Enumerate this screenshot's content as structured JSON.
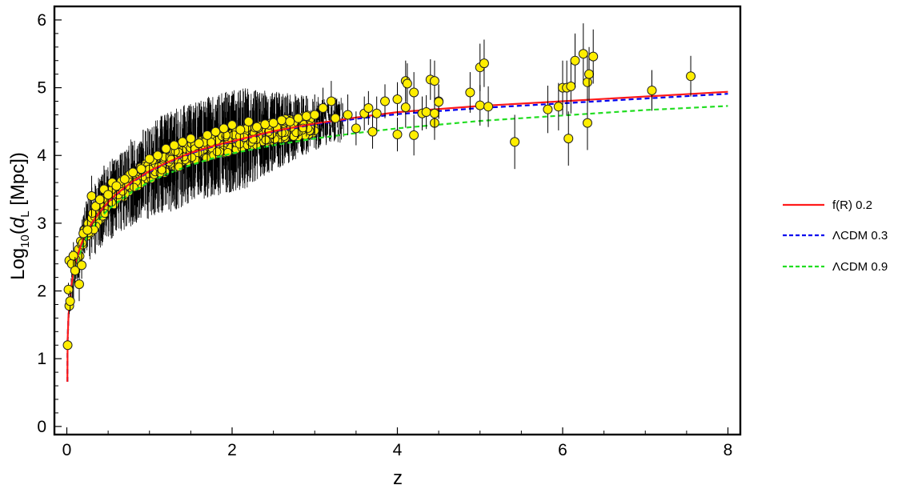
{
  "chart_data": {
    "type": "scatter",
    "xlabel": "z",
    "ylabel": {
      "pre": "Log",
      "sub1": "10",
      "mid": "(",
      "italic": "d",
      "sub2": "L",
      "post": " [Mpc])"
    },
    "xlim": [
      -0.15,
      8.15
    ],
    "ylim": [
      -0.12,
      6.2
    ],
    "xticks": [
      0,
      2,
      4,
      6,
      8
    ],
    "yticks": [
      0,
      1,
      2,
      3,
      4,
      5,
      6
    ],
    "grid": false,
    "legend_position": "right",
    "series": [
      {
        "name": "f(R) 0.2",
        "kind": "line",
        "style": "solid",
        "color": "#ff1a1a",
        "x": [
          0.0065,
          0.01,
          0.02,
          0.03,
          0.05,
          0.075,
          0.1,
          0.15,
          0.2,
          0.3,
          0.4,
          0.5,
          0.6,
          0.8,
          1.0,
          1.2,
          1.5,
          1.8,
          2.0,
          2.5,
          3.0,
          3.5,
          4.0,
          5.0,
          6.0,
          7.0,
          8.0
        ],
        "y": [
          0.66,
          1.28,
          1.63,
          1.8,
          2.04,
          2.23,
          2.37,
          2.6,
          2.77,
          3.0,
          3.17,
          3.31,
          3.43,
          3.62,
          3.77,
          3.89,
          4.04,
          4.15,
          4.21,
          4.36,
          4.47,
          4.56,
          4.64,
          4.73,
          4.8,
          4.87,
          4.94
        ]
      },
      {
        "name": "ΛCDM  0.3",
        "kind": "line",
        "style": "dashed",
        "color": "#0000ee",
        "x": [
          0.0065,
          0.01,
          0.02,
          0.03,
          0.05,
          0.075,
          0.1,
          0.15,
          0.2,
          0.3,
          0.4,
          0.5,
          0.6,
          0.8,
          1.0,
          1.2,
          1.5,
          1.8,
          2.0,
          2.5,
          3.0,
          3.5,
          4.0,
          5.0,
          6.0,
          7.0,
          8.0
        ],
        "y": [
          0.66,
          1.28,
          1.63,
          1.8,
          2.04,
          2.23,
          2.37,
          2.6,
          2.77,
          3.0,
          3.17,
          3.3,
          3.42,
          3.61,
          3.76,
          3.88,
          4.03,
          4.14,
          4.2,
          4.35,
          4.46,
          4.54,
          4.61,
          4.7,
          4.77,
          4.84,
          4.91
        ]
      },
      {
        "name": "ΛCDM  0.9",
        "kind": "line",
        "style": "dashed",
        "color": "#22dd22",
        "x": [
          0.0065,
          0.01,
          0.02,
          0.03,
          0.05,
          0.075,
          0.1,
          0.15,
          0.2,
          0.3,
          0.4,
          0.5,
          0.6,
          0.8,
          1.0,
          1.2,
          1.5,
          1.8,
          2.0,
          2.5,
          3.0,
          3.5,
          4.0,
          5.0,
          6.0,
          7.0,
          8.0
        ],
        "y": [
          0.66,
          1.27,
          1.61,
          1.78,
          2.01,
          2.19,
          2.32,
          2.53,
          2.69,
          2.91,
          3.07,
          3.2,
          3.3,
          3.47,
          3.61,
          3.72,
          3.86,
          3.97,
          4.03,
          4.15,
          4.25,
          4.33,
          4.4,
          4.51,
          4.59,
          4.67,
          4.73
        ]
      },
      {
        "name": "",
        "kind": "points",
        "color": "#ffee00",
        "points": [
          [
            0.01,
            1.2,
            0.05
          ],
          [
            0.02,
            2.02,
            0.1
          ],
          [
            0.03,
            1.78,
            0.12
          ],
          [
            0.04,
            1.85,
            0.15
          ],
          [
            0.03,
            2.45,
            0.1
          ],
          [
            0.06,
            2.4,
            0.2
          ],
          [
            0.08,
            2.52,
            0.2
          ],
          [
            0.1,
            2.3,
            0.2
          ],
          [
            0.15,
            2.1,
            0.25
          ],
          [
            0.18,
            2.38,
            0.2
          ],
          [
            0.2,
            2.85,
            0.25
          ],
          [
            0.25,
            2.9,
            0.25
          ],
          [
            0.3,
            3.4,
            0.3
          ],
          [
            0.35,
            3.25,
            0.3
          ],
          [
            0.4,
            3.35,
            0.3
          ],
          [
            0.45,
            3.5,
            0.35
          ],
          [
            0.5,
            3.42,
            0.35
          ],
          [
            0.55,
            3.6,
            0.35
          ],
          [
            0.6,
            3.55,
            0.35
          ],
          [
            0.7,
            3.65,
            0.4
          ],
          [
            0.8,
            3.75,
            0.4
          ],
          [
            0.9,
            3.8,
            0.4
          ],
          [
            1.0,
            3.95,
            0.4
          ],
          [
            1.1,
            4.0,
            0.4
          ],
          [
            1.2,
            4.1,
            0.4
          ],
          [
            1.3,
            4.15,
            0.4
          ],
          [
            1.4,
            4.2,
            0.4
          ],
          [
            1.5,
            4.25,
            0.4
          ],
          [
            1.6,
            4.18,
            0.4
          ],
          [
            1.7,
            4.3,
            0.4
          ],
          [
            1.8,
            4.35,
            0.4
          ],
          [
            1.9,
            4.4,
            0.4
          ],
          [
            2.0,
            4.45,
            0.4
          ],
          [
            2.1,
            4.38,
            0.4
          ],
          [
            2.2,
            4.5,
            0.4
          ],
          [
            2.3,
            4.42,
            0.35
          ],
          [
            2.4,
            4.46,
            0.35
          ],
          [
            2.5,
            4.48,
            0.35
          ],
          [
            2.6,
            4.52,
            0.35
          ],
          [
            2.7,
            4.5,
            0.3
          ],
          [
            2.8,
            4.55,
            0.3
          ],
          [
            2.9,
            4.58,
            0.3
          ],
          [
            3.0,
            4.6,
            0.3
          ],
          [
            3.1,
            4.7,
            0.3
          ],
          [
            3.2,
            4.8,
            0.3
          ],
          [
            3.25,
            4.55,
            0.3
          ],
          [
            3.4,
            4.6,
            0.3
          ],
          [
            3.5,
            4.4,
            0.25
          ],
          [
            3.6,
            4.62,
            0.25
          ],
          [
            3.65,
            4.7,
            0.25
          ],
          [
            3.7,
            4.35,
            0.25
          ],
          [
            3.75,
            4.62,
            0.25
          ],
          [
            3.85,
            4.8,
            0.25
          ],
          [
            4.0,
            4.83,
            0.25
          ],
          [
            4.0,
            4.31,
            0.25
          ],
          [
            4.1,
            5.1,
            0.3
          ],
          [
            4.12,
            5.06,
            0.3
          ],
          [
            4.1,
            4.71,
            0.3
          ],
          [
            4.2,
            4.3,
            0.3
          ],
          [
            4.2,
            4.93,
            0.3
          ],
          [
            4.3,
            4.62,
            0.25
          ],
          [
            4.35,
            4.64,
            0.25
          ],
          [
            4.4,
            5.12,
            0.3
          ],
          [
            4.45,
            5.1,
            0.3
          ],
          [
            4.45,
            4.48,
            0.25
          ],
          [
            4.45,
            4.62,
            0.25
          ],
          [
            4.5,
            4.8,
            0.25
          ],
          [
            4.5,
            4.79,
            0.25
          ],
          [
            4.88,
            4.93,
            0.3
          ],
          [
            5.0,
            5.3,
            0.35
          ],
          [
            5.05,
            5.36,
            0.35
          ],
          [
            5.0,
            4.74,
            0.3
          ],
          [
            5.1,
            4.72,
            0.3
          ],
          [
            5.42,
            4.2,
            0.4
          ],
          [
            5.82,
            4.68,
            0.35
          ],
          [
            5.95,
            4.72,
            0.35
          ],
          [
            6.0,
            5.0,
            0.4
          ],
          [
            6.05,
            5.0,
            0.4
          ],
          [
            6.07,
            4.25,
            0.4
          ],
          [
            6.1,
            5.02,
            0.4
          ],
          [
            6.15,
            5.4,
            0.4
          ],
          [
            6.25,
            5.5,
            0.45
          ],
          [
            6.3,
            5.08,
            0.4
          ],
          [
            6.32,
            5.2,
            0.4
          ],
          [
            6.3,
            4.48,
            0.4
          ],
          [
            6.37,
            5.46,
            0.4
          ],
          [
            7.08,
            4.96,
            0.3
          ],
          [
            7.55,
            5.17,
            0.3
          ]
        ]
      }
    ]
  }
}
